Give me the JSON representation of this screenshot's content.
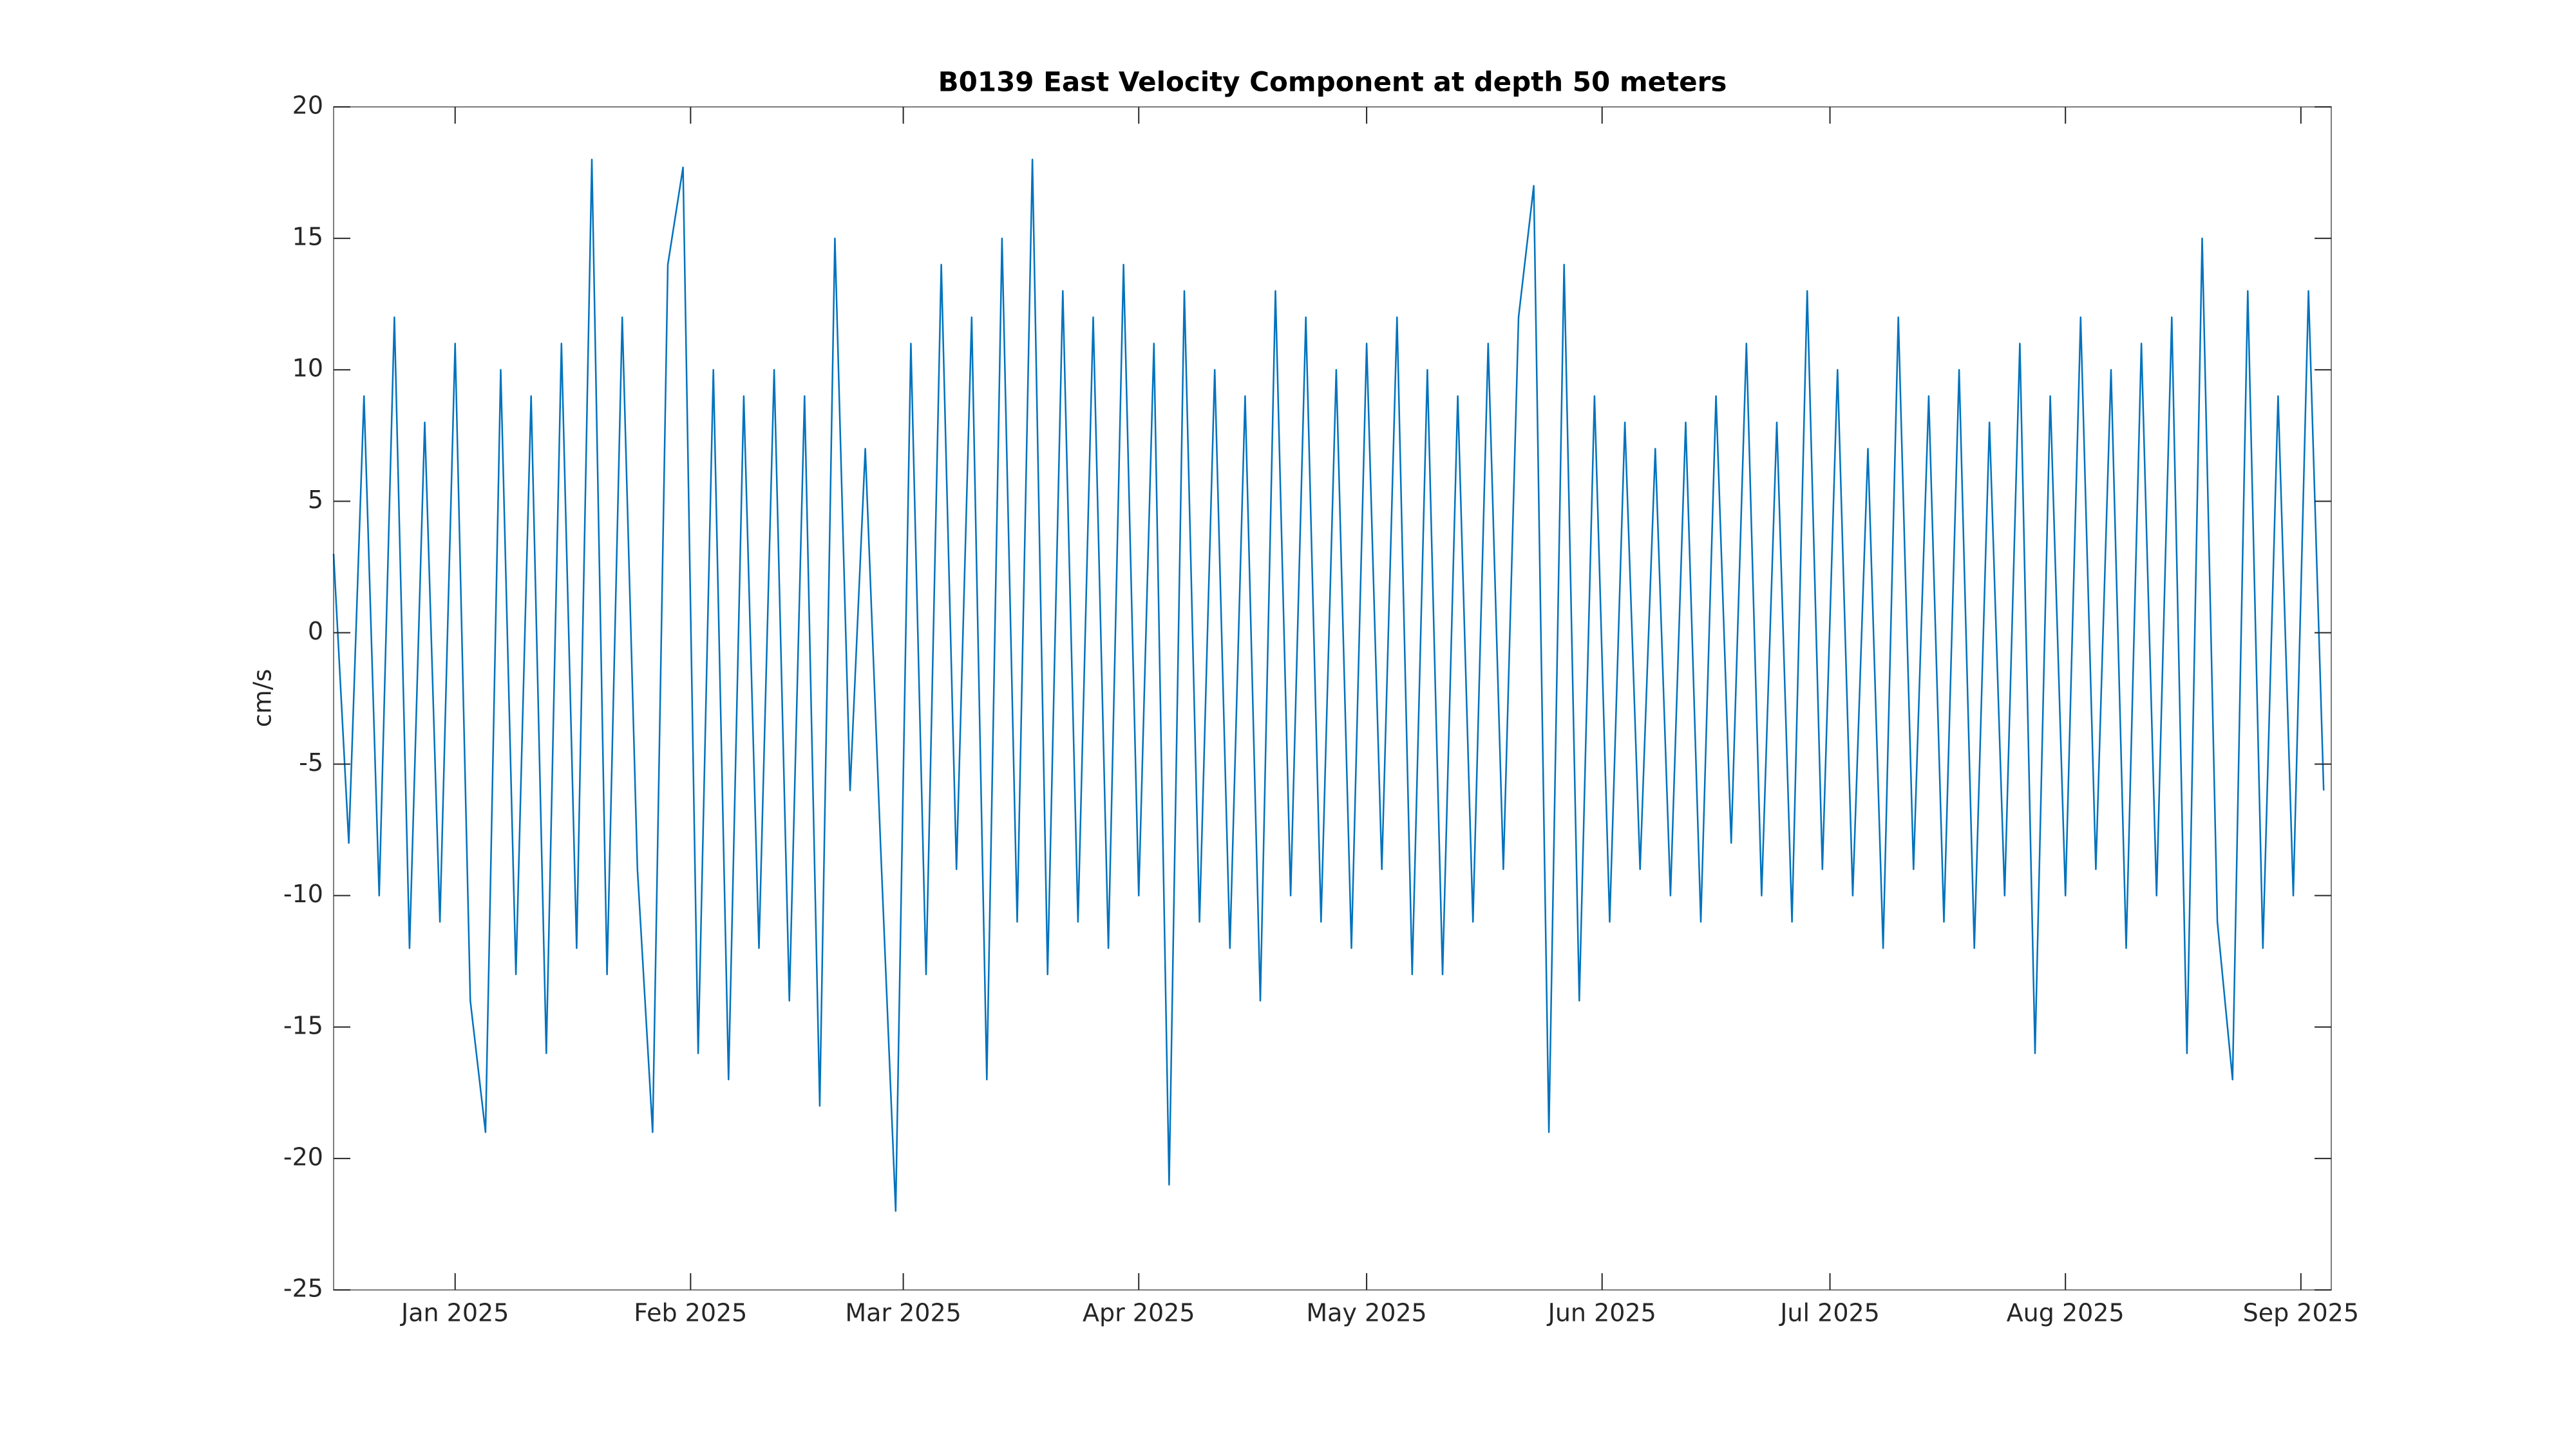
{
  "chart_data": {
    "type": "line",
    "title": "B0139 East Velocity Component at depth 50 meters",
    "ylabel": "cm/s",
    "color": "#0072bd",
    "x": [
      -16,
      -14,
      -12,
      -10,
      -8,
      -6,
      -4,
      -2,
      0,
      2,
      4,
      6,
      8,
      10,
      12,
      14,
      16,
      18,
      20,
      22,
      24,
      26,
      28,
      30,
      32,
      34,
      36,
      38,
      40,
      42,
      44,
      46,
      48,
      50,
      52,
      54,
      56,
      58,
      60,
      62,
      64,
      66,
      68,
      70,
      72,
      74,
      76,
      78,
      80,
      82,
      84,
      86,
      88,
      90,
      92,
      94,
      96,
      98,
      100,
      102,
      104,
      106,
      108,
      110,
      112,
      114,
      116,
      118,
      120,
      122,
      124,
      126,
      128,
      130,
      132,
      134,
      136,
      138,
      140,
      142,
      144,
      146,
      148,
      150,
      152,
      154,
      156,
      158,
      160,
      162,
      164,
      166,
      168,
      170,
      172,
      174,
      176,
      178,
      180,
      182,
      184,
      186,
      188,
      190,
      192,
      194,
      196,
      198,
      200,
      202,
      204,
      206,
      208,
      210,
      212,
      214,
      216,
      218,
      220,
      222,
      224,
      226,
      228,
      230,
      232,
      234,
      236,
      238,
      240,
      242,
      244,
      246
    ],
    "values": [
      3,
      -8,
      9,
      -10,
      12,
      -12,
      8,
      -11,
      11,
      -14,
      -19,
      10,
      -13,
      9,
      -16,
      11,
      -12,
      18,
      -13,
      12,
      -9,
      -19,
      14,
      17.7,
      -16,
      10,
      -17,
      9,
      -12,
      10,
      -14,
      9,
      -18,
      15,
      -6,
      7,
      -8,
      -22,
      11,
      -13,
      14,
      -9,
      12,
      -17,
      15,
      -11,
      18,
      -13,
      13,
      -11,
      12,
      -12,
      14,
      -10,
      11,
      -21,
      13,
      -11,
      10,
      -12,
      9,
      -14,
      13,
      -10,
      12,
      -11,
      10,
      -12,
      11,
      -9,
      12,
      -13,
      10,
      -13,
      9,
      -11,
      11,
      -9,
      12,
      17,
      -19,
      14,
      -14,
      9,
      -11,
      8,
      -9,
      7,
      -10,
      8,
      -11,
      9,
      -8,
      11,
      -10,
      8,
      -11,
      13,
      -9,
      10,
      -10,
      7,
      -12,
      12,
      -9,
      9,
      -11,
      10,
      -12,
      8,
      -10,
      11,
      -16,
      9,
      -10,
      12,
      -9,
      10,
      -12,
      11,
      -10,
      12,
      -16,
      15,
      -11,
      -17,
      13,
      -12,
      9,
      -10,
      13,
      -6
    ],
    "xlim": [
      -16,
      247
    ],
    "xticks": [
      {
        "value": 0,
        "label": "Jan 2025"
      },
      {
        "value": 31,
        "label": "Feb 2025"
      },
      {
        "value": 59,
        "label": "Mar 2025"
      },
      {
        "value": 90,
        "label": "Apr 2025"
      },
      {
        "value": 120,
        "label": "May 2025"
      },
      {
        "value": 151,
        "label": "Jun 2025"
      },
      {
        "value": 181,
        "label": "Jul 2025"
      },
      {
        "value": 212,
        "label": "Aug 2025"
      },
      {
        "value": 243,
        "label": "Sep 2025"
      }
    ],
    "ylim": [
      -25,
      20
    ],
    "yticks": [
      -25,
      -20,
      -15,
      -10,
      -5,
      0,
      5,
      10,
      15,
      20
    ],
    "grid": false
  }
}
